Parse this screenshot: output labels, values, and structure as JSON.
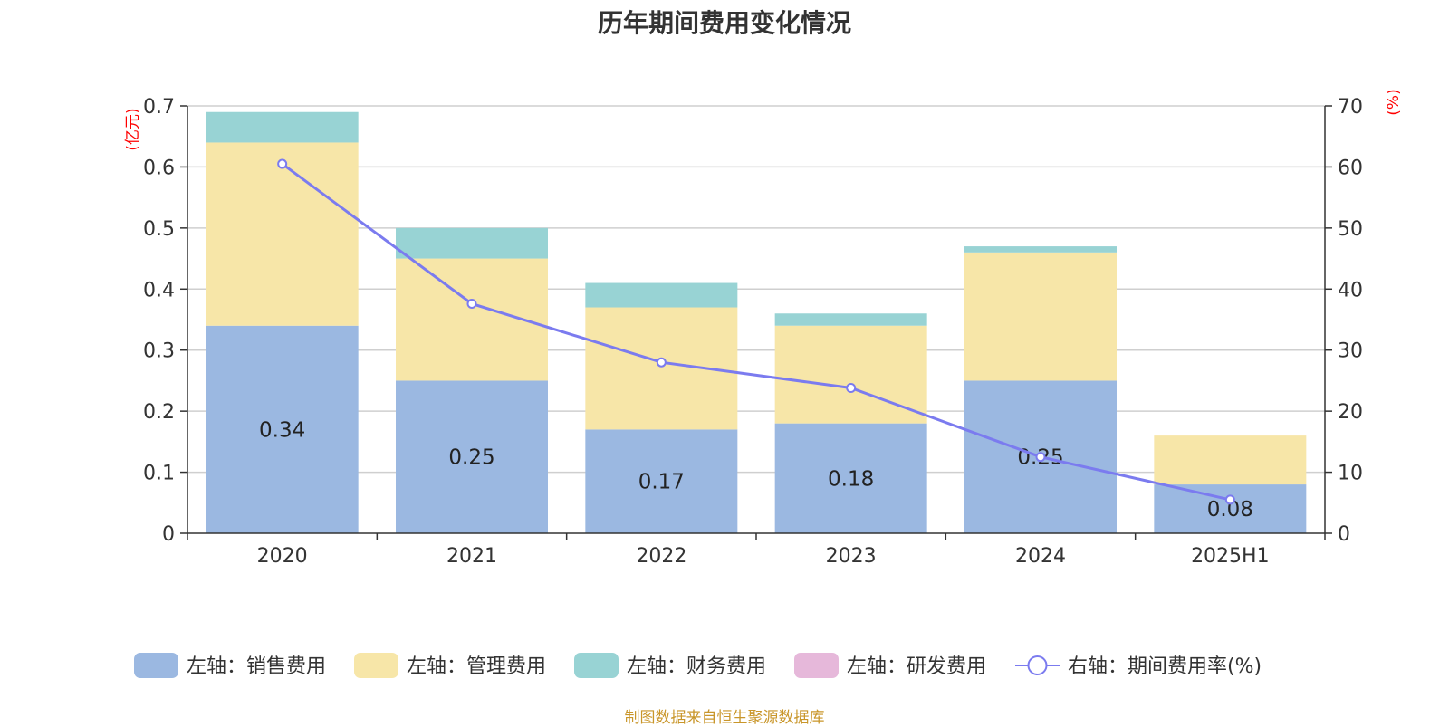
{
  "title": "历年期间费用变化情况",
  "source": "制图数据来自恒生聚源数据库",
  "chart_data": {
    "type": "bar",
    "stacked": true,
    "categories": [
      "2020",
      "2021",
      "2022",
      "2023",
      "2024",
      "2025H1"
    ],
    "left_axis": {
      "unit_label": "(亿元)",
      "ylim": [
        0,
        0.7
      ],
      "ticks": [
        "0",
        "0.1",
        "0.2",
        "0.3",
        "0.4",
        "0.5",
        "0.6",
        "0.7"
      ]
    },
    "right_axis": {
      "unit_label": "(%)",
      "ylim": [
        0,
        70
      ],
      "ticks": [
        "0",
        "10",
        "20",
        "30",
        "40",
        "50",
        "60",
        "70"
      ]
    },
    "series": [
      {
        "name": "左轴：销售费用",
        "axis": "left",
        "kind": "bar",
        "color": "#9bb8e1",
        "values": [
          0.34,
          0.25,
          0.17,
          0.18,
          0.25,
          0.08
        ],
        "labels": [
          "0.34",
          "0.25",
          "0.17",
          "0.18",
          "0.25",
          "0.08"
        ]
      },
      {
        "name": "左轴：管理费用",
        "axis": "left",
        "kind": "bar",
        "color": "#f7e6a8",
        "values": [
          0.3,
          0.2,
          0.2,
          0.16,
          0.21,
          0.08
        ]
      },
      {
        "name": "左轴：财务费用",
        "axis": "left",
        "kind": "bar",
        "color": "#98d3d4",
        "values": [
          0.05,
          0.05,
          0.04,
          0.02,
          0.01,
          0.0
        ]
      },
      {
        "name": "左轴：研发费用",
        "axis": "left",
        "kind": "bar",
        "color": "#e6b8da",
        "values": [
          0,
          0,
          0,
          0,
          0,
          0
        ]
      },
      {
        "name": "右轴：期间费用率(%)",
        "axis": "right",
        "kind": "line",
        "color": "#7b7bef",
        "values": [
          60.5,
          37.6,
          28.0,
          23.8,
          12.5,
          5.5
        ]
      }
    ],
    "grid": true,
    "legend_position": "bottom"
  }
}
